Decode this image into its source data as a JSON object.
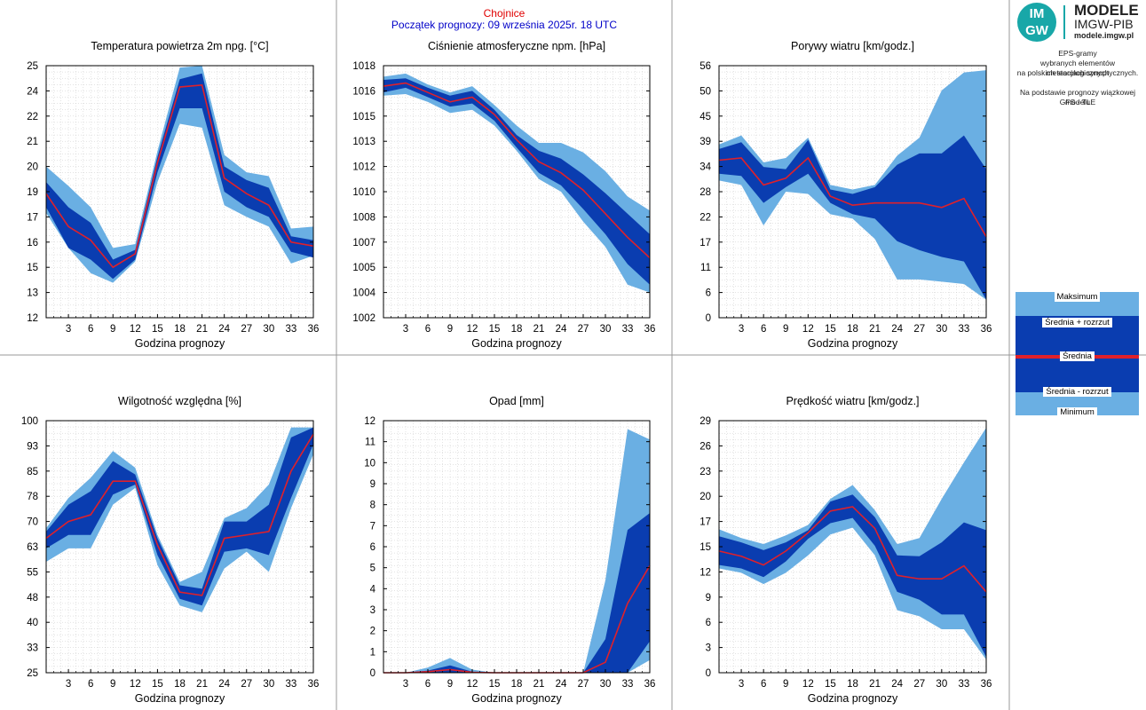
{
  "header": {
    "station": "Chojnice",
    "forecast_start": "Początek prognozy: 09 września 2025r. 18 UTC"
  },
  "logo": {
    "circle_top": "IM",
    "circle_bottom": "GW",
    "line1": "MODELE",
    "line2": "IMGW-PIB",
    "line3": "modele.imgw.pl"
  },
  "description": {
    "line1": "EPS-gramy",
    "line2": "wybranych elementów meteorologicznych",
    "line3": "na polskich stacjach  synoptycznych.",
    "line4": "Na podstawie prognozy wiązkowej modelu",
    "line5": "GFS - TLE"
  },
  "legend": {
    "max": "Maksimum",
    "mean_plus": "Średnia + rozrzut",
    "mean": "Średnia",
    "mean_minus": "Średnia - rozrzut",
    "min": "Minimum"
  },
  "colors": {
    "light_band": "#6aafe3",
    "dark_band": "#0a3db0",
    "mean_line": "#e0202a",
    "station_text": "#e00000",
    "start_text": "#0000c8",
    "grid": "#c8c8c8"
  },
  "chart_data": [
    {
      "id": "temp",
      "type": "area",
      "title": "Temperatura powietrza 2m npg. [°C]",
      "xlabel": "Godzina prognozy",
      "ylabel": "",
      "x": [
        0,
        3,
        6,
        9,
        12,
        15,
        18,
        21,
        24,
        27,
        30,
        33,
        36
      ],
      "ylim": [
        12,
        25
      ],
      "yticks": [
        12,
        13,
        15,
        16,
        17,
        19,
        20,
        21,
        22,
        24,
        25
      ],
      "xticks": [
        3,
        6,
        9,
        12,
        15,
        18,
        21,
        24,
        27,
        30,
        33,
        36
      ],
      "max": [
        19.8,
        18.8,
        17.7,
        15.6,
        15.8,
        20.6,
        24.9,
        25.0,
        20.4,
        19.5,
        19.3,
        16.6,
        16.7
      ],
      "sd_plus": [
        19.0,
        17.7,
        16.9,
        15.0,
        15.5,
        20.3,
        24.3,
        24.6,
        19.8,
        19.1,
        18.7,
        16.2,
        16.0
      ],
      "mean": [
        18.4,
        16.7,
        16.0,
        14.6,
        15.3,
        20.0,
        23.9,
        24.0,
        19.2,
        18.4,
        17.8,
        15.9,
        15.7
      ],
      "sd_minus": [
        17.7,
        15.6,
        15.0,
        14.0,
        15.0,
        19.5,
        22.8,
        22.8,
        18.5,
        17.7,
        17.2,
        15.4,
        15.1
      ],
      "min": [
        17.4,
        15.6,
        14.3,
        13.8,
        14.9,
        19.0,
        22.0,
        21.8,
        17.8,
        17.2,
        16.7,
        14.8,
        15.2
      ]
    },
    {
      "id": "pressure",
      "type": "area",
      "title": "Ciśnienie atmosferyczne npm. [hPa]",
      "xlabel": "Godzina prognozy",
      "ylabel": "",
      "x": [
        0,
        3,
        6,
        9,
        12,
        15,
        18,
        21,
        24,
        27,
        30,
        33,
        36
      ],
      "ylim": [
        1002,
        1018
      ],
      "yticks": [
        1002,
        1004,
        1005,
        1007,
        1008,
        1010,
        1012,
        1013,
        1015,
        1016,
        1018
      ],
      "xticks": [
        3,
        6,
        9,
        12,
        15,
        18,
        21,
        24,
        27,
        30,
        33,
        36
      ],
      "max": [
        1017.3,
        1017.5,
        1016.8,
        1016.3,
        1016.7,
        1015.5,
        1014.2,
        1013.1,
        1013.1,
        1012.5,
        1011.3,
        1009.7,
        1008.8
      ],
      "sd_plus": [
        1017.1,
        1017.2,
        1016.6,
        1016.1,
        1016.4,
        1015.2,
        1013.6,
        1012.6,
        1012.1,
        1011.1,
        1009.9,
        1008.6,
        1007.3
      ],
      "mean": [
        1016.7,
        1016.9,
        1016.3,
        1015.7,
        1016.0,
        1014.9,
        1013.3,
        1011.9,
        1011.2,
        1010.1,
        1008.6,
        1007.1,
        1005.8
      ],
      "sd_minus": [
        1016.3,
        1016.6,
        1016.0,
        1015.4,
        1015.6,
        1014.5,
        1012.8,
        1011.2,
        1010.4,
        1008.9,
        1007.3,
        1005.4,
        1004.1
      ],
      "min": [
        1016.1,
        1016.2,
        1015.7,
        1015.0,
        1015.2,
        1014.2,
        1012.6,
        1010.8,
        1010.0,
        1008.1,
        1006.5,
        1004.1,
        1003.6
      ]
    },
    {
      "id": "gusts",
      "type": "area",
      "title": "Porywy wiatru [km/godz.]",
      "xlabel": "Godzina prognozy",
      "ylabel": "",
      "x": [
        0,
        3,
        6,
        9,
        12,
        15,
        18,
        21,
        24,
        27,
        30,
        33,
        36
      ],
      "ylim": [
        0,
        56
      ],
      "yticks": [
        0,
        6,
        11,
        17,
        22,
        28,
        34,
        39,
        45,
        50,
        56
      ],
      "xticks": [
        3,
        6,
        9,
        12,
        15,
        18,
        21,
        24,
        27,
        30,
        33,
        36
      ],
      "max": [
        38.5,
        40.5,
        34.5,
        35.5,
        40.0,
        29.5,
        28.5,
        29.5,
        36.0,
        40.0,
        50.5,
        54.5,
        55.0
      ],
      "sd_plus": [
        37.5,
        39.0,
        33.5,
        33.0,
        39.5,
        28.5,
        27.5,
        29.0,
        34.0,
        36.5,
        36.5,
        40.5,
        33.0
      ],
      "mean": [
        35.0,
        35.5,
        29.5,
        31.0,
        35.5,
        27.0,
        25.0,
        25.5,
        25.5,
        25.5,
        24.5,
        26.5,
        18.0
      ],
      "sd_minus": [
        32.0,
        31.5,
        25.5,
        29.0,
        32.0,
        25.5,
        23.0,
        22.0,
        17.0,
        15.0,
        13.5,
        12.5,
        4.0
      ],
      "min": [
        30.5,
        29.5,
        20.5,
        28.0,
        27.5,
        23.0,
        22.0,
        17.5,
        8.5,
        8.5,
        8.0,
        7.5,
        4.0
      ]
    },
    {
      "id": "humidity",
      "type": "area",
      "title": "Wilgotność względna [%]",
      "xlabel": "Godzina prognozy",
      "ylabel": "",
      "x": [
        0,
        3,
        6,
        9,
        12,
        15,
        18,
        21,
        24,
        27,
        30,
        33,
        36
      ],
      "ylim": [
        25,
        100
      ],
      "yticks": [
        25,
        33,
        40,
        48,
        55,
        63,
        70,
        78,
        85,
        93,
        100
      ],
      "xticks": [
        3,
        6,
        9,
        12,
        15,
        18,
        21,
        24,
        27,
        30,
        33,
        36
      ],
      "max": [
        68,
        77,
        83,
        91,
        86,
        66,
        52,
        55,
        71,
        74,
        81,
        98,
        98
      ],
      "sd_plus": [
        67,
        75,
        79,
        88,
        84,
        65,
        51,
        50,
        70,
        70,
        75,
        95,
        98
      ],
      "mean": [
        65,
        70,
        72,
        82,
        82,
        63,
        49,
        48,
        65,
        66,
        67,
        85,
        96
      ],
      "sd_minus": [
        62,
        66,
        66,
        78,
        81,
        60,
        47,
        45,
        61,
        62,
        60,
        77,
        93
      ],
      "min": [
        58,
        62,
        62,
        75,
        80,
        57,
        45,
        43,
        56,
        61,
        55,
        74,
        90
      ]
    },
    {
      "id": "precip",
      "type": "area",
      "title": "Opad [mm]",
      "xlabel": "Godzina prognozy",
      "ylabel": "",
      "x": [
        0,
        3,
        6,
        9,
        12,
        15,
        18,
        21,
        24,
        27,
        30,
        33,
        36
      ],
      "ylim": [
        0,
        12
      ],
      "yticks": [
        0,
        1,
        2,
        3,
        4,
        5,
        6,
        7,
        8,
        9,
        10,
        11,
        12
      ],
      "xticks": [
        3,
        6,
        9,
        12,
        15,
        18,
        21,
        24,
        27,
        30,
        33,
        36
      ],
      "max": [
        0,
        0,
        0.25,
        0.7,
        0.15,
        0,
        0,
        0,
        0,
        0,
        4.4,
        11.6,
        11.1
      ],
      "sd_plus": [
        0,
        0,
        0.1,
        0.35,
        0.05,
        0,
        0,
        0,
        0,
        0,
        1.6,
        6.8,
        7.6
      ],
      "mean": [
        0,
        0,
        0.05,
        0.15,
        0.02,
        0,
        0,
        0,
        0,
        0,
        0.5,
        3.3,
        5.1
      ],
      "sd_minus": [
        0,
        0,
        0,
        0,
        0,
        0,
        0,
        0,
        0,
        0,
        0,
        0,
        1.5
      ],
      "min": [
        0,
        0,
        0,
        0,
        0,
        0,
        0,
        0,
        0,
        0,
        0,
        0,
        0.6
      ]
    },
    {
      "id": "wind",
      "type": "area",
      "title": "Prędkość wiatru [km/godz.]",
      "xlabel": "Godzina prognozy",
      "ylabel": "",
      "x": [
        0,
        3,
        6,
        9,
        12,
        15,
        18,
        21,
        24,
        27,
        30,
        33,
        36
      ],
      "ylim": [
        0,
        29
      ],
      "yticks": [
        0,
        3,
        6,
        9,
        12,
        15,
        17,
        20,
        23,
        26,
        29
      ],
      "xticks": [
        3,
        6,
        9,
        12,
        15,
        18,
        21,
        24,
        27,
        30,
        33,
        36
      ],
      "max": [
        16.5,
        15.5,
        14.8,
        15.8,
        17.0,
        20.0,
        21.6,
        18.7,
        14.8,
        15.5,
        20.0,
        24.2,
        28.2
      ],
      "sd_plus": [
        15.7,
        15.0,
        14.1,
        15.0,
        16.4,
        19.7,
        20.5,
        17.9,
        13.5,
        13.4,
        15.0,
        17.3,
        16.4
      ],
      "mean": [
        14.0,
        13.4,
        12.4,
        14.0,
        16.1,
        18.6,
        19.1,
        16.6,
        11.2,
        10.8,
        10.8,
        12.3,
        9.3
      ],
      "sd_minus": [
        12.4,
        12.0,
        11.0,
        12.8,
        15.4,
        17.2,
        17.8,
        14.6,
        9.3,
        8.4,
        6.7,
        6.7,
        1.8
      ],
      "min": [
        12.0,
        11.5,
        10.2,
        11.5,
        13.5,
        15.9,
        16.7,
        13.5,
        7.2,
        6.5,
        5.0,
        5.0,
        1.5
      ]
    }
  ]
}
